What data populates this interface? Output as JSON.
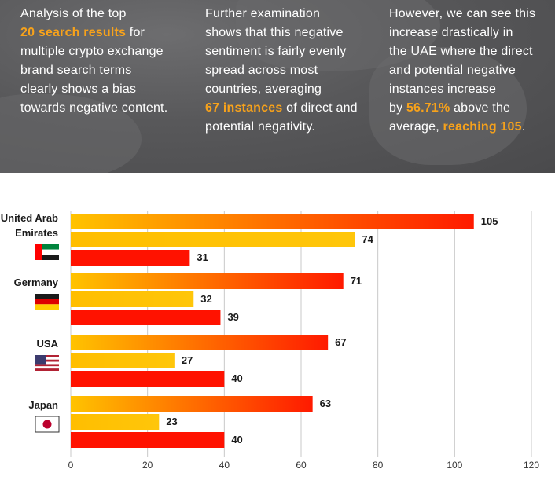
{
  "banner": {
    "col1": [
      {
        "text": "Analysis of the top "
      },
      {
        "br": true
      },
      {
        "text": "20 search results",
        "hl": true
      },
      {
        "text": " for"
      },
      {
        "br": true
      },
      {
        "text": "multiple crypto exchange"
      },
      {
        "br": true
      },
      {
        "text": "brand search terms"
      },
      {
        "br": true
      },
      {
        "text": "clearly shows a bias"
      },
      {
        "br": true
      },
      {
        "text": "towards negative content."
      }
    ],
    "col2": [
      {
        "text": "Further examination"
      },
      {
        "br": true
      },
      {
        "text": "shows that this negative"
      },
      {
        "br": true
      },
      {
        "text": "sentiment is fairly evenly"
      },
      {
        "br": true
      },
      {
        "text": "spread across most"
      },
      {
        "br": true
      },
      {
        "text": "countries, averaging"
      },
      {
        "br": true
      },
      {
        "text": "67 instances",
        "hl": true
      },
      {
        "text": " of direct and"
      },
      {
        "br": true
      },
      {
        "text": "potential negativity."
      }
    ],
    "col3": [
      {
        "text": "However, we can see this"
      },
      {
        "br": true
      },
      {
        "text": "increase drastically in"
      },
      {
        "br": true
      },
      {
        "text": "the UAE where the direct"
      },
      {
        "br": true
      },
      {
        "text": "and potential negative"
      },
      {
        "br": true
      },
      {
        "text": "instances increase"
      },
      {
        "br": true
      },
      {
        "text": "by "
      },
      {
        "text": "56.71%",
        "hl": true
      },
      {
        "text": " above the"
      },
      {
        "br": true
      },
      {
        "text": "average, "
      },
      {
        "text": "reaching 105",
        "hl": true
      },
      {
        "text": "."
      }
    ]
  },
  "colors": {
    "highlight": "#f7a21b",
    "total_bar_start": "#ffc300",
    "total_bar_end": "#ff1a00",
    "potential_bar": "#ffc107",
    "direct_bar": "#ff1200",
    "grid": "#c8c8c8"
  },
  "chart_data": {
    "type": "bar",
    "orientation": "horizontal",
    "categories": [
      "United Arab Emirates",
      "Germany",
      "USA",
      "Japan"
    ],
    "category_label_lines": [
      [
        "United Arab",
        "Emirates"
      ],
      [
        "Germany"
      ],
      [
        "USA"
      ],
      [
        "Japan"
      ]
    ],
    "flags": [
      "uae-flag-icon",
      "germany-flag-icon",
      "usa-flag-icon",
      "japan-flag-icon"
    ],
    "series": [
      {
        "values": [
          105,
          71,
          67,
          63
        ]
      },
      {
        "values": [
          74,
          32,
          27,
          23
        ]
      },
      {
        "values": [
          31,
          39,
          40,
          40
        ]
      }
    ],
    "xlim": [
      0,
      120
    ],
    "xticks": [
      0,
      20,
      40,
      60,
      80,
      100,
      120
    ],
    "grid": true,
    "xlabel": "",
    "ylabel": "",
    "title": ""
  }
}
